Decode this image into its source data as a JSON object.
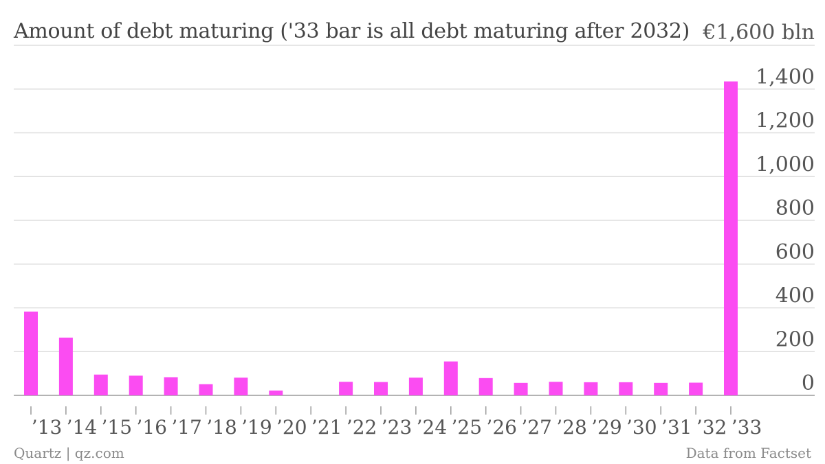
{
  "chart_data": {
    "type": "bar",
    "title": "Amount of debt maturing ('33 bar is all debt maturing after 2032)",
    "unit_label": "€1,600 bln",
    "categories": [
      "’13",
      "’14",
      "’15",
      "’16",
      "’17",
      "’18",
      "’19",
      "’20",
      "’21",
      "’22",
      "’23",
      "’24",
      "’25",
      "’26",
      "’27",
      "’28",
      "’29",
      "’30",
      "’31",
      "’32",
      "’33"
    ],
    "values": [
      383,
      264,
      95,
      90,
      83,
      51,
      81,
      22,
      0,
      62,
      61,
      81,
      155,
      79,
      57,
      62,
      60,
      60,
      57,
      58,
      1435
    ],
    "y_ticks": [
      "0",
      "200",
      "400",
      "600",
      "800",
      "1,000",
      "1,200",
      "1,400"
    ],
    "y_tick_values": [
      0,
      200,
      400,
      600,
      800,
      1000,
      1200,
      1400
    ],
    "ylim": [
      0,
      1600
    ],
    "grid": true,
    "y_axis_side": "right",
    "bar_color": "#fb4cf2"
  },
  "footer": {
    "source_left": "Quartz | qz.com",
    "source_right": "Data from Factset"
  }
}
